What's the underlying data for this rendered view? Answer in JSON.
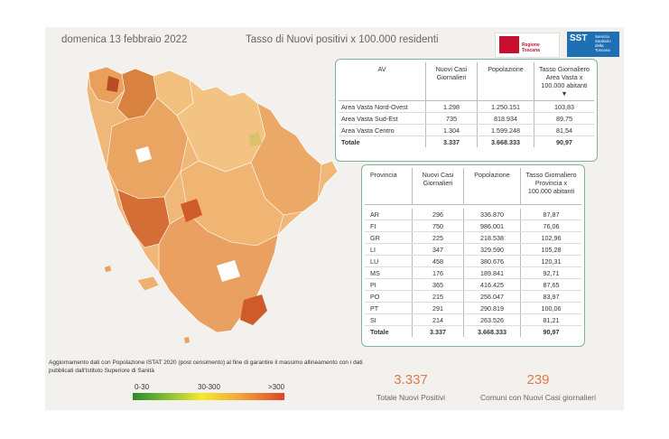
{
  "header": {
    "date": "domenica 13 febbraio 2022",
    "title": "Tasso di Nuovi positivi x 100.000 residenti",
    "logo_regione": "Regione Toscana",
    "logo_sst": "SST",
    "logo_sst_sub": "Servizio Sanitario della Toscana"
  },
  "colors": {
    "accent": "#e0784a",
    "border": "#7fb39a",
    "map_low": "#f7c98b",
    "map_high": "#d2622d"
  },
  "av_table": {
    "headers": [
      "AV",
      "Nuovi Casi Giornalieri",
      "Popolazione",
      "Tasso Giornaliero Area Vasta x 100.000 abitanti"
    ],
    "rows": [
      [
        "Area Vasta Nord-Ovest",
        "1.298",
        "1.250.151",
        "103,83"
      ],
      [
        "Area Vasta Sud-Est",
        "735",
        "818.934",
        "89,75"
      ],
      [
        "Area Vasta Centro",
        "1.304",
        "1.599.248",
        "81,54"
      ]
    ],
    "total": [
      "Totale",
      "3.337",
      "3.668.333",
      "90,97"
    ]
  },
  "prov_table": {
    "headers": [
      "Provincia",
      "Nuovi Casi Giornalieri",
      "Popolazione",
      "Tasso Giornaliero Provincia x 100.000 abitanti"
    ],
    "rows": [
      [
        "AR",
        "296",
        "336.870",
        "87,87"
      ],
      [
        "FI",
        "750",
        "986.001",
        "76,06"
      ],
      [
        "GR",
        "225",
        "218.538",
        "102,96"
      ],
      [
        "LI",
        "347",
        "329.590",
        "105,28"
      ],
      [
        "LU",
        "458",
        "380.676",
        "120,31"
      ],
      [
        "MS",
        "176",
        "189.841",
        "92,71"
      ],
      [
        "PI",
        "365",
        "416.425",
        "87,65"
      ],
      [
        "PO",
        "215",
        "256.047",
        "83,97"
      ],
      [
        "PT",
        "291",
        "290.819",
        "100,06"
      ],
      [
        "SI",
        "214",
        "263.526",
        "81,21"
      ]
    ],
    "total": [
      "Totale",
      "3.337",
      "3.668.333",
      "90,97"
    ]
  },
  "note": "Aggiornamento dati con Popolazione ISTAT 2020 (post censimento) al fine di garantire il massimo allineamento con i dati pubblicati dall'Istituto Superiore di Sanità",
  "legend": {
    "low": "0-30",
    "mid": "30-300",
    "high": ">300"
  },
  "kpis": [
    {
      "value": "3.337",
      "label": "Totale Nuovi Positivi"
    },
    {
      "value": "239",
      "label": "Comuni con Nuovi Casi giornalieri"
    }
  ]
}
